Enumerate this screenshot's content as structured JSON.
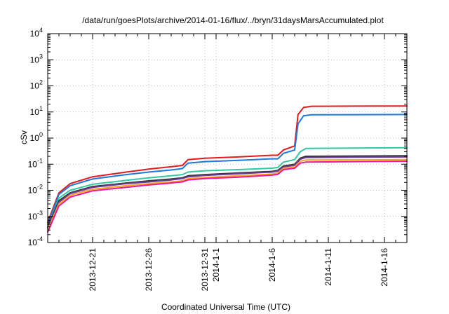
{
  "chart_data": {
    "type": "line",
    "title": "/data/run/goesPlots/archive/2014-01-16/flux/../bryn/31daysMarsAccumulated.plot",
    "xlabel": "Coordinated Universal Time (UTC)",
    "ylabel": "cSv",
    "y_scale": "log",
    "ylim": [
      0.0001,
      10000
    ],
    "xlim": [
      "2013-12-17",
      "2014-01-18"
    ],
    "grid": true,
    "legend": "none",
    "y_ticks": [
      {
        "value": 0.0001,
        "base": "10",
        "exp": "-4"
      },
      {
        "value": 0.001,
        "base": "10",
        "exp": "-3"
      },
      {
        "value": 0.01,
        "base": "10",
        "exp": "-2"
      },
      {
        "value": 0.1,
        "base": "10",
        "exp": "-1"
      },
      {
        "value": 1,
        "base": "10",
        "exp": "0"
      },
      {
        "value": 10,
        "base": "10",
        "exp": "1"
      },
      {
        "value": 100,
        "base": "10",
        "exp": "2"
      },
      {
        "value": 1000,
        "base": "10",
        "exp": "3"
      },
      {
        "value": 10000,
        "base": "10",
        "exp": "4"
      }
    ],
    "x_ticks": [
      {
        "value": "2013-12-21",
        "label": "2013-12-21"
      },
      {
        "value": "2013-12-26",
        "label": "2013-12-26"
      },
      {
        "value": "2013-12-31",
        "label": "2013-12-31"
      },
      {
        "value": "2014-01-01",
        "label": "2014-1-1"
      },
      {
        "value": "2014-01-06",
        "label": "2014-1-6"
      },
      {
        "value": "2014-01-11",
        "label": "2014-1-11"
      },
      {
        "value": "2014-01-16",
        "label": "2014-1-16"
      }
    ],
    "series": [
      {
        "color": "#e41a1c",
        "points": [
          [
            "2013-12-17",
            0.0006
          ],
          [
            "2013-12-18",
            0.008
          ],
          [
            "2013-12-19",
            0.018
          ],
          [
            "2013-12-21",
            0.033
          ],
          [
            "2013-12-24",
            0.05
          ],
          [
            "2013-12-26",
            0.065
          ],
          [
            "2013-12-28",
            0.08
          ],
          [
            "2013-12-29",
            0.09
          ],
          [
            "2013-12-29.5",
            0.15
          ],
          [
            "2013-12-31",
            0.17
          ],
          [
            "2014-01-03",
            0.19
          ],
          [
            "2014-01-06",
            0.22
          ],
          [
            "2014-01-06.5",
            0.22
          ],
          [
            "2014-01-07",
            0.35
          ],
          [
            "2014-01-08",
            0.5
          ],
          [
            "2014-01-08.3",
            8.0
          ],
          [
            "2014-01-08.8",
            15.0
          ],
          [
            "2014-01-09.5",
            16.5
          ],
          [
            "2014-01-18",
            17.0
          ]
        ]
      },
      {
        "color": "#1f78e0",
        "points": [
          [
            "2013-12-17",
            0.0005
          ],
          [
            "2013-12-18",
            0.007
          ],
          [
            "2013-12-19",
            0.015
          ],
          [
            "2013-12-21",
            0.027
          ],
          [
            "2013-12-24",
            0.04
          ],
          [
            "2013-12-26",
            0.05
          ],
          [
            "2013-12-28",
            0.06
          ],
          [
            "2013-12-29",
            0.068
          ],
          [
            "2013-12-29.5",
            0.11
          ],
          [
            "2013-12-31",
            0.125
          ],
          [
            "2014-01-03",
            0.14
          ],
          [
            "2014-01-06",
            0.16
          ],
          [
            "2014-01-06.5",
            0.16
          ],
          [
            "2014-01-07",
            0.26
          ],
          [
            "2014-01-08",
            0.35
          ],
          [
            "2014-01-08.3",
            3.5
          ],
          [
            "2014-01-08.8",
            7.2
          ],
          [
            "2014-01-09.5",
            7.8
          ],
          [
            "2014-01-18",
            8.0
          ]
        ]
      },
      {
        "color": "#2ec9a0",
        "points": [
          [
            "2013-12-17",
            0.0004
          ],
          [
            "2013-12-18",
            0.005
          ],
          [
            "2013-12-19",
            0.01
          ],
          [
            "2013-12-21",
            0.017
          ],
          [
            "2013-12-24",
            0.024
          ],
          [
            "2013-12-26",
            0.03
          ],
          [
            "2013-12-28",
            0.036
          ],
          [
            "2013-12-29",
            0.04
          ],
          [
            "2013-12-29.5",
            0.05
          ],
          [
            "2013-12-31",
            0.056
          ],
          [
            "2014-01-03",
            0.062
          ],
          [
            "2014-01-06",
            0.07
          ],
          [
            "2014-01-06.5",
            0.075
          ],
          [
            "2014-01-07",
            0.12
          ],
          [
            "2014-01-08",
            0.15
          ],
          [
            "2014-01-08.5",
            0.3
          ],
          [
            "2014-01-09",
            0.4
          ],
          [
            "2014-01-18",
            0.43
          ]
        ]
      },
      {
        "color": "#333333",
        "points": [
          [
            "2013-12-17",
            0.0004
          ],
          [
            "2013-12-18",
            0.004
          ],
          [
            "2013-12-19",
            0.008
          ],
          [
            "2013-12-21",
            0.014
          ],
          [
            "2013-12-24",
            0.019
          ],
          [
            "2013-12-26",
            0.023
          ],
          [
            "2013-12-28",
            0.027
          ],
          [
            "2013-12-29",
            0.03
          ],
          [
            "2013-12-29.5",
            0.036
          ],
          [
            "2013-12-31",
            0.04
          ],
          [
            "2014-01-03",
            0.046
          ],
          [
            "2014-01-06",
            0.053
          ],
          [
            "2014-01-06.5",
            0.058
          ],
          [
            "2014-01-07",
            0.085
          ],
          [
            "2014-01-08",
            0.1
          ],
          [
            "2014-01-08.5",
            0.17
          ],
          [
            "2014-01-09",
            0.2
          ],
          [
            "2014-01-18",
            0.21
          ]
        ]
      },
      {
        "color": "#6a3d9a",
        "points": [
          [
            "2013-12-17",
            0.00035
          ],
          [
            "2013-12-18",
            0.0035
          ],
          [
            "2013-12-19",
            0.0075
          ],
          [
            "2013-12-21",
            0.013
          ],
          [
            "2013-12-24",
            0.018
          ],
          [
            "2013-12-26",
            0.021
          ],
          [
            "2013-12-28",
            0.025
          ],
          [
            "2013-12-29",
            0.028
          ],
          [
            "2013-12-29.5",
            0.033
          ],
          [
            "2013-12-31",
            0.037
          ],
          [
            "2014-01-03",
            0.043
          ],
          [
            "2014-01-06",
            0.05
          ],
          [
            "2014-01-06.5",
            0.054
          ],
          [
            "2014-01-07",
            0.078
          ],
          [
            "2014-01-08",
            0.092
          ],
          [
            "2014-01-08.5",
            0.155
          ],
          [
            "2014-01-09",
            0.18
          ],
          [
            "2014-01-18",
            0.19
          ]
        ]
      },
      {
        "color": "#f5a623",
        "points": [
          [
            "2013-12-17",
            0.0003
          ],
          [
            "2013-12-18",
            0.003
          ],
          [
            "2013-12-19",
            0.0065
          ],
          [
            "2013-12-21",
            0.011
          ],
          [
            "2013-12-24",
            0.015
          ],
          [
            "2013-12-26",
            0.018
          ],
          [
            "2013-12-28",
            0.021
          ],
          [
            "2013-12-29",
            0.023
          ],
          [
            "2013-12-29.5",
            0.028
          ],
          [
            "2013-12-31",
            0.031
          ],
          [
            "2014-01-03",
            0.036
          ],
          [
            "2014-01-06",
            0.042
          ],
          [
            "2014-01-06.5",
            0.046
          ],
          [
            "2014-01-07",
            0.07
          ],
          [
            "2014-01-08",
            0.08
          ],
          [
            "2014-01-08.5",
            0.13
          ],
          [
            "2014-01-09",
            0.145
          ],
          [
            "2014-01-18",
            0.15
          ]
        ]
      },
      {
        "color": "#e8199e",
        "points": [
          [
            "2013-12-17",
            0.00025
          ],
          [
            "2013-12-18",
            0.0025
          ],
          [
            "2013-12-19",
            0.0055
          ],
          [
            "2013-12-21",
            0.0095
          ],
          [
            "2013-12-24",
            0.013
          ],
          [
            "2013-12-26",
            0.016
          ],
          [
            "2013-12-28",
            0.019
          ],
          [
            "2013-12-29",
            0.021
          ],
          [
            "2013-12-29.5",
            0.025
          ],
          [
            "2013-12-31",
            0.028
          ],
          [
            "2014-01-03",
            0.032
          ],
          [
            "2014-01-06",
            0.038
          ],
          [
            "2014-01-06.5",
            0.041
          ],
          [
            "2014-01-07",
            0.062
          ],
          [
            "2014-01-08",
            0.07
          ],
          [
            "2014-01-08.5",
            0.11
          ],
          [
            "2014-01-09",
            0.12
          ],
          [
            "2014-01-18",
            0.13
          ]
        ]
      }
    ]
  }
}
